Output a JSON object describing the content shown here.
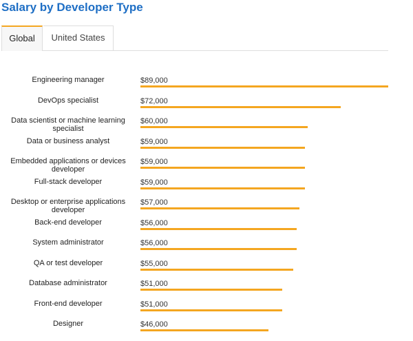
{
  "page": {
    "title": "Salary by Developer Type"
  },
  "tabs": [
    {
      "label": "Global",
      "active": true
    },
    {
      "label": "United States",
      "active": false
    }
  ],
  "colors": {
    "title": "#1f6fc5",
    "bar": "#f4a620",
    "active_tab_accent": "#f4a620"
  },
  "chart_data": {
    "type": "bar",
    "orientation": "horizontal",
    "title": "Salary by Developer Type",
    "xlabel": "",
    "ylabel": "",
    "xlim": [
      0,
      89000
    ],
    "grid": false,
    "legend": "none",
    "categories": [
      "Engineering manager",
      "DevOps specialist",
      "Data scientist or machine learning specialist",
      "Data or business analyst",
      "Embedded applications or devices developer",
      "Full-stack developer",
      "Desktop or enterprise applications developer",
      "Back-end developer",
      "System administrator",
      "QA or test developer",
      "Database administrator",
      "Front-end developer",
      "Designer"
    ],
    "values": [
      89000,
      72000,
      60000,
      59000,
      59000,
      59000,
      57000,
      56000,
      56000,
      55000,
      51000,
      51000,
      46000
    ],
    "value_labels": [
      "$89,000",
      "$72,000",
      "$60,000",
      "$59,000",
      "$59,000",
      "$59,000",
      "$57,000",
      "$56,000",
      "$56,000",
      "$55,000",
      "$51,000",
      "$51,000",
      "$46,000"
    ]
  }
}
